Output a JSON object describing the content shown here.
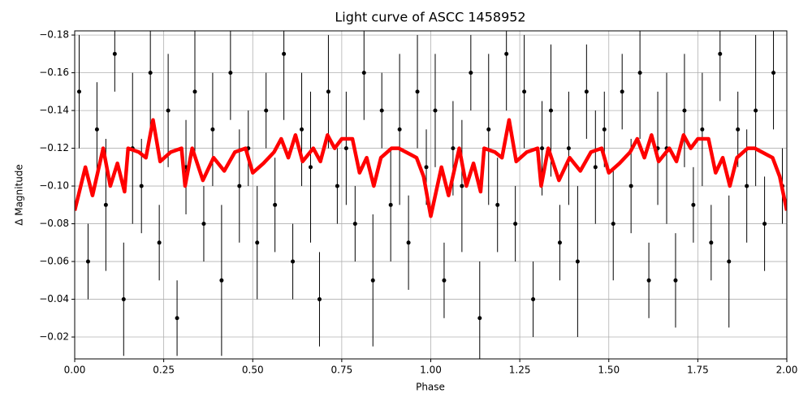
{
  "chart_data": {
    "type": "errorbar",
    "title": "Light curve of ASCC 1458952",
    "x_label": "Phase",
    "y_label": "Δ Magnitude",
    "xlim": [
      0,
      2
    ],
    "ylim": [
      -0.1822,
      -0.0084
    ],
    "y_inverted": true,
    "grid": true,
    "xticks": [
      {
        "value": 0,
        "label": "0.00"
      },
      {
        "value": 0.25,
        "label": "0.25"
      },
      {
        "value": 0.5,
        "label": "0.50"
      },
      {
        "value": 0.75,
        "label": "0.75"
      },
      {
        "value": 1,
        "label": "1.00"
      },
      {
        "value": 1.25,
        "label": "1.25"
      },
      {
        "value": 1.5,
        "label": "1.50"
      },
      {
        "value": 1.75,
        "label": "1.75"
      },
      {
        "value": 2,
        "label": "2.00"
      }
    ],
    "yticks": [
      {
        "value": -0.18,
        "label": "−0.18"
      },
      {
        "value": -0.16,
        "label": "−0.16"
      },
      {
        "value": -0.14,
        "label": "−0.14"
      },
      {
        "value": -0.12,
        "label": "−0.12"
      },
      {
        "value": -0.1,
        "label": "−0.10"
      },
      {
        "value": -0.08,
        "label": "−0.08"
      },
      {
        "value": -0.06,
        "label": "−0.06"
      },
      {
        "value": -0.04,
        "label": "−0.04"
      },
      {
        "value": -0.02,
        "label": "−0.02"
      }
    ],
    "series": [
      {
        "type": "errorbar",
        "color": "#000000",
        "x": [
          0.0125,
          0.0375,
          0.0625,
          0.0875,
          0.1125,
          0.1375,
          0.1625,
          0.1875,
          0.2125,
          0.2375,
          0.2625,
          0.2875,
          0.3125,
          0.3375,
          0.3625,
          0.3875,
          0.4125,
          0.4375,
          0.4625,
          0.4875,
          0.5125,
          0.5375,
          0.5625,
          0.5875,
          0.6125,
          0.6375,
          0.6625,
          0.6875,
          0.7125,
          0.7375,
          0.7625,
          0.7875,
          0.8125,
          0.8375,
          0.8625,
          0.8875,
          0.9125,
          0.9375,
          0.9625,
          0.9875,
          1.0125,
          1.0375,
          1.0625,
          1.0875,
          1.1125,
          1.1375,
          1.1625,
          1.1875,
          1.2125,
          1.2375,
          1.2625,
          1.2875,
          1.3125,
          1.3375,
          1.3625,
          1.3875,
          1.4125,
          1.4375,
          1.4625,
          1.4875,
          1.5125,
          1.5375,
          1.5625,
          1.5875,
          1.6125,
          1.6375,
          1.6625,
          1.6875,
          1.7125,
          1.7375,
          1.7625,
          1.7875,
          1.8125,
          1.8375,
          1.8625,
          1.8875,
          1.9125,
          1.9375,
          1.9625,
          1.9875
        ],
        "values": [
          -0.15,
          -0.06,
          -0.13,
          -0.09,
          -0.17,
          -0.04,
          -0.12,
          -0.1,
          -0.16,
          -0.07,
          -0.14,
          -0.03,
          -0.11,
          -0.15,
          -0.08,
          -0.13,
          -0.05,
          -0.16,
          -0.1,
          -0.12,
          -0.07,
          -0.14,
          -0.09,
          -0.17,
          -0.06,
          -0.13,
          -0.11,
          -0.04,
          -0.15,
          -0.1,
          -0.12,
          -0.08,
          -0.16,
          -0.05,
          -0.14,
          -0.09,
          -0.13,
          -0.07,
          -0.15,
          -0.11,
          -0.14,
          -0.05,
          -0.12,
          -0.1,
          -0.16,
          -0.03,
          -0.13,
          -0.09,
          -0.17,
          -0.08,
          -0.15,
          -0.04,
          -0.12,
          -0.14,
          -0.07,
          -0.12,
          -0.06,
          -0.15,
          -0.11,
          -0.13,
          -0.08,
          -0.15,
          -0.1,
          -0.16,
          -0.05,
          -0.12,
          -0.12,
          -0.05,
          -0.14,
          -0.09,
          -0.13,
          -0.07,
          -0.17,
          -0.06,
          -0.13,
          -0.1,
          -0.14,
          -0.08,
          -0.16,
          -0.1
        ],
        "errors": [
          0.03,
          0.02,
          0.025,
          0.035,
          0.02,
          0.03,
          0.04,
          0.025,
          0.03,
          0.02,
          0.03,
          0.02,
          0.025,
          0.035,
          0.02,
          0.03,
          0.04,
          0.025,
          0.03,
          0.02,
          0.03,
          0.02,
          0.025,
          0.035,
          0.02,
          0.03,
          0.04,
          0.025,
          0.03,
          0.02,
          0.03,
          0.02,
          0.025,
          0.035,
          0.02,
          0.03,
          0.04,
          0.025,
          0.03,
          0.02,
          0.03,
          0.02,
          0.025,
          0.035,
          0.02,
          0.03,
          0.04,
          0.025,
          0.03,
          0.02,
          0.03,
          0.02,
          0.025,
          0.035,
          0.02,
          0.03,
          0.04,
          0.025,
          0.03,
          0.02,
          0.03,
          0.02,
          0.025,
          0.035,
          0.02,
          0.03,
          0.04,
          0.025,
          0.03,
          0.02,
          0.03,
          0.02,
          0.025,
          0.035,
          0.02,
          0.03,
          0.04,
          0.025,
          0.03,
          0.02
        ]
      },
      {
        "type": "line",
        "color": "#ff0000",
        "x": [
          0,
          0.03,
          0.05,
          0.08,
          0.1,
          0.12,
          0.14,
          0.15,
          0.18,
          0.2,
          0.22,
          0.24,
          0.27,
          0.3,
          0.31,
          0.33,
          0.36,
          0.39,
          0.42,
          0.45,
          0.48,
          0.5,
          0.53,
          0.56,
          0.58,
          0.6,
          0.62,
          0.64,
          0.67,
          0.69,
          0.71,
          0.73,
          0.75,
          0.78,
          0.8,
          0.82,
          0.84,
          0.86,
          0.89,
          0.91,
          0.93,
          0.96,
          0.98,
          1.0,
          1.03,
          1.05,
          1.08,
          1.1,
          1.12,
          1.14,
          1.15,
          1.18,
          1.2,
          1.22,
          1.24,
          1.27,
          1.3,
          1.31,
          1.33,
          1.36,
          1.39,
          1.42,
          1.45,
          1.48,
          1.5,
          1.53,
          1.56,
          1.58,
          1.6,
          1.62,
          1.64,
          1.67,
          1.69,
          1.71,
          1.73,
          1.75,
          1.78,
          1.8,
          1.82,
          1.84,
          1.86,
          1.89,
          1.91,
          1.93,
          1.96,
          1.98,
          2.0
        ],
        "values": [
          -0.087,
          -0.11,
          -0.095,
          -0.12,
          -0.1,
          -0.112,
          -0.097,
          -0.12,
          -0.118,
          -0.115,
          -0.135,
          -0.113,
          -0.118,
          -0.12,
          -0.1,
          -0.12,
          -0.103,
          -0.115,
          -0.108,
          -0.118,
          -0.12,
          -0.107,
          -0.112,
          -0.118,
          -0.125,
          -0.115,
          -0.127,
          -0.113,
          -0.12,
          -0.113,
          -0.127,
          -0.12,
          -0.125,
          -0.125,
          -0.107,
          -0.115,
          -0.1,
          -0.115,
          -0.12,
          -0.12,
          -0.118,
          -0.115,
          -0.105,
          -0.084,
          -0.11,
          -0.095,
          -0.12,
          -0.1,
          -0.112,
          -0.097,
          -0.12,
          -0.118,
          -0.115,
          -0.135,
          -0.113,
          -0.118,
          -0.12,
          -0.1,
          -0.12,
          -0.103,
          -0.115,
          -0.108,
          -0.118,
          -0.12,
          -0.107,
          -0.112,
          -0.118,
          -0.125,
          -0.115,
          -0.127,
          -0.113,
          -0.12,
          -0.113,
          -0.127,
          -0.12,
          -0.125,
          -0.125,
          -0.107,
          -0.115,
          -0.1,
          -0.115,
          -0.12,
          -0.12,
          -0.118,
          -0.115,
          -0.105,
          -0.087
        ]
      }
    ]
  }
}
